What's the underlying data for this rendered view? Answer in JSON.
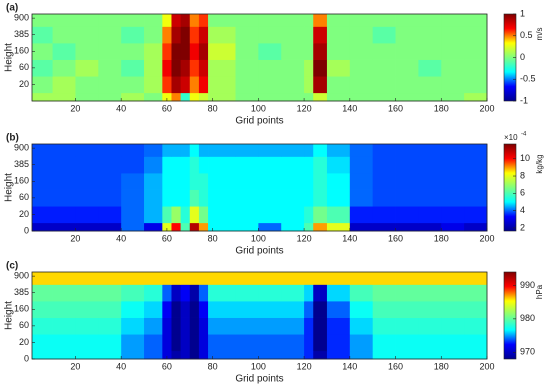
{
  "chart_data": [
    {
      "type": "heatmap",
      "panel_label": "(a)",
      "xlabel": "Grid points",
      "ylabel": "Height",
      "xlim": [
        1,
        200
      ],
      "xticks": [
        20,
        40,
        60,
        80,
        100,
        120,
        140,
        160,
        180,
        200
      ],
      "ylim": [
        0,
        5.25
      ],
      "yticks": [
        {
          "value": 1,
          "label": "20"
        },
        {
          "value": 2,
          "label": "60"
        },
        {
          "value": 3,
          "label": "160"
        },
        {
          "value": 4,
          "label": "385"
        },
        {
          "value": 5,
          "label": "900"
        }
      ],
      "x_edges": [
        1,
        10,
        20,
        30,
        40,
        50,
        58,
        62,
        66,
        70,
        74,
        78,
        90,
        100,
        110,
        120,
        124,
        130,
        140,
        150,
        160,
        170,
        180,
        190,
        200
      ],
      "y_edges": [
        0,
        0.5,
        1.5,
        2.5,
        3.5,
        4.5,
        5.25
      ],
      "z": [
        [
          0.1,
          0.1,
          0,
          0,
          0.1,
          0,
          0.3,
          0.5,
          -0.2,
          0.3,
          0.2,
          0.1,
          0,
          0,
          0,
          0,
          0.2,
          0,
          0,
          0,
          0,
          0,
          0,
          0.1
        ],
        [
          0,
          0.1,
          0,
          0,
          0,
          0.1,
          0.6,
          0.9,
          0.8,
          0.5,
          0.7,
          0.1,
          0,
          0,
          0,
          0.1,
          0.9,
          0,
          0,
          0,
          0,
          0,
          0,
          0
        ],
        [
          -0.1,
          0,
          0.1,
          0,
          -0.1,
          0.1,
          0.7,
          1,
          0.9,
          0.6,
          0.8,
          0.1,
          0,
          0,
          0,
          0.1,
          1,
          0.1,
          0,
          0,
          0,
          -0.1,
          0,
          0
        ],
        [
          0,
          -0.1,
          0,
          0,
          0,
          0.1,
          0.6,
          1,
          1,
          0.7,
          0.9,
          0.2,
          0,
          -0.1,
          0,
          0,
          0.9,
          0,
          0,
          0,
          0,
          0,
          0,
          0
        ],
        [
          -0.1,
          0,
          0,
          0,
          -0.1,
          0,
          0.5,
          0.9,
          1,
          0.6,
          0.8,
          0.1,
          0,
          0,
          0,
          0,
          0.8,
          0,
          0,
          -0.1,
          0,
          0,
          0,
          0
        ],
        [
          0,
          0,
          0,
          0,
          0,
          0,
          0.3,
          0.8,
          0.9,
          0.5,
          0.6,
          0,
          0,
          0,
          0,
          0,
          0.5,
          0,
          0,
          0,
          0,
          0,
          0,
          0
        ]
      ],
      "zlim": [
        -1,
        1
      ],
      "zticks": [
        -1,
        -0.5,
        0,
        0.5,
        1
      ],
      "colorbar_label": "m/s",
      "colormap": [
        "#00008f",
        "#0000ff",
        "#00ffff",
        "#7fff7f",
        "#ffff00",
        "#ff0000",
        "#7f0000"
      ]
    },
    {
      "type": "heatmap",
      "panel_label": "(b)",
      "xlabel": "Grid points",
      "ylabel": "Height",
      "xlim": [
        1,
        200
      ],
      "xticks": [
        20,
        40,
        60,
        80,
        100,
        120,
        140,
        160,
        180,
        200
      ],
      "ylim": [
        0,
        5.25
      ],
      "yticks": [
        0,
        {
          "value": 1,
          "label": "20"
        },
        {
          "value": 2,
          "label": "60"
        },
        {
          "value": 3,
          "label": "160"
        },
        {
          "value": 4,
          "label": "385"
        },
        {
          "value": 5,
          "label": "900"
        }
      ],
      "x_edges": [
        1,
        10,
        20,
        30,
        40,
        50,
        58,
        62,
        66,
        70,
        74,
        78,
        90,
        100,
        110,
        120,
        124,
        130,
        140,
        150,
        160,
        170,
        180,
        190,
        200
      ],
      "y_edges": [
        0,
        0.5,
        1.5,
        2.5,
        3.5,
        4.5,
        5.25
      ],
      "z": [
        [
          2.5,
          2.5,
          2.5,
          2.5,
          4,
          3,
          8,
          10,
          6,
          11,
          9,
          5,
          5,
          4,
          5,
          6,
          9,
          8,
          2.5,
          2.5,
          2.5,
          2.5,
          3,
          2.5
        ],
        [
          3.5,
          3.5,
          3.5,
          3.5,
          4,
          4.5,
          6,
          7,
          5.5,
          8,
          6.5,
          5,
          5,
          5,
          5,
          5.5,
          6.5,
          6,
          3.5,
          3.5,
          3.5,
          3.5,
          3.5,
          3.5
        ],
        [
          3.8,
          3.8,
          3.8,
          3.8,
          4,
          4.5,
          5,
          5,
          5,
          6,
          5.5,
          5,
          5,
          5,
          5,
          5,
          5.5,
          5,
          4,
          3.8,
          3.8,
          3.8,
          3.8,
          3.8
        ],
        [
          3.8,
          3.8,
          3.8,
          3.8,
          4,
          4.5,
          5,
          5,
          5,
          5.5,
          5.5,
          5,
          5,
          5,
          5,
          5,
          5.5,
          5,
          4,
          3.8,
          3.8,
          3.8,
          3.8,
          3.8
        ],
        [
          3.8,
          3.8,
          3.8,
          3.8,
          3.8,
          4.2,
          5,
          5,
          5,
          5.5,
          5,
          5,
          5,
          5,
          5,
          5,
          5.5,
          4.8,
          4,
          3.8,
          3.8,
          3.8,
          3.8,
          3.8
        ],
        [
          3.8,
          3.8,
          3.8,
          3.8,
          3.8,
          4,
          4.5,
          4.5,
          4.5,
          5,
          4.5,
          4.5,
          4.5,
          4.5,
          4.5,
          4.5,
          5,
          4.5,
          4,
          3.8,
          3.8,
          3.8,
          3.8,
          3.8
        ]
      ],
      "zlim": [
        1.65,
        11.7
      ],
      "zticks": [
        2,
        4,
        6,
        8,
        10
      ],
      "colorbar_label": "kg/kg",
      "colorbar_multiplier": {
        "base": "×10",
        "exponent": "-4"
      },
      "colormap": [
        "#00008f",
        "#0000ff",
        "#00ffff",
        "#7fff7f",
        "#ffff00",
        "#ff0000",
        "#7f0000"
      ]
    },
    {
      "type": "heatmap",
      "panel_label": "(c)",
      "xlabel": "Grid points",
      "ylabel": "Height",
      "xlim": [
        1,
        200
      ],
      "xticks": [
        20,
        40,
        60,
        80,
        100,
        120,
        140,
        160,
        180,
        200
      ],
      "ylim": [
        0,
        5.25
      ],
      "yticks": [
        0,
        {
          "value": 1,
          "label": "20"
        },
        {
          "value": 2,
          "label": "60"
        },
        {
          "value": 3,
          "label": "160"
        },
        {
          "value": 4,
          "label": "385"
        },
        {
          "value": 5,
          "label": "900"
        }
      ],
      "x_edges": [
        1,
        10,
        20,
        30,
        40,
        50,
        58,
        62,
        66,
        70,
        74,
        78,
        90,
        100,
        110,
        120,
        124,
        130,
        140,
        150,
        160,
        170,
        180,
        190,
        200
      ],
      "y_edges": [
        0,
        0.5,
        1.5,
        2.5,
        3.5,
        4.5,
        5.25
      ],
      "z": [
        [
          977,
          977,
          977,
          977,
          975,
          974,
          971,
          969,
          970,
          968,
          971,
          974,
          974,
          974,
          974,
          973,
          969,
          973,
          975,
          977,
          977,
          977,
          977,
          977
        ],
        [
          977,
          977,
          977,
          977,
          975,
          974,
          971,
          968,
          970,
          968,
          971,
          974,
          974,
          974,
          974,
          973,
          968,
          973,
          975,
          977,
          977,
          977,
          977,
          977
        ],
        [
          978,
          978,
          978,
          978,
          976,
          975,
          971,
          968,
          970,
          968,
          971,
          975,
          975,
          975,
          975,
          973,
          968,
          973,
          976,
          978,
          978,
          978,
          978,
          978
        ],
        [
          979,
          979,
          979,
          979,
          977,
          976,
          972,
          968,
          970,
          968,
          972,
          976,
          976,
          976,
          976,
          974,
          968,
          974,
          977,
          979,
          979,
          979,
          979,
          979
        ],
        [
          980,
          980,
          980,
          980,
          979,
          978,
          974,
          970,
          972,
          969,
          974,
          978,
          978,
          978,
          978,
          976,
          970,
          976,
          979,
          980,
          980,
          980,
          980,
          980
        ],
        [
          986,
          986,
          986,
          986,
          986,
          986,
          986,
          986,
          986,
          986,
          986,
          986,
          986,
          986,
          986,
          986,
          986,
          986,
          986,
          986,
          986,
          986,
          986,
          986
        ]
      ],
      "zlim": [
        968,
        994
      ],
      "zticks": [
        970,
        980,
        990
      ],
      "colorbar_label": "hPa",
      "colormap": [
        "#00008f",
        "#0000ff",
        "#00ffff",
        "#7fff7f",
        "#ffff00",
        "#ff0000",
        "#7f0000"
      ]
    }
  ]
}
